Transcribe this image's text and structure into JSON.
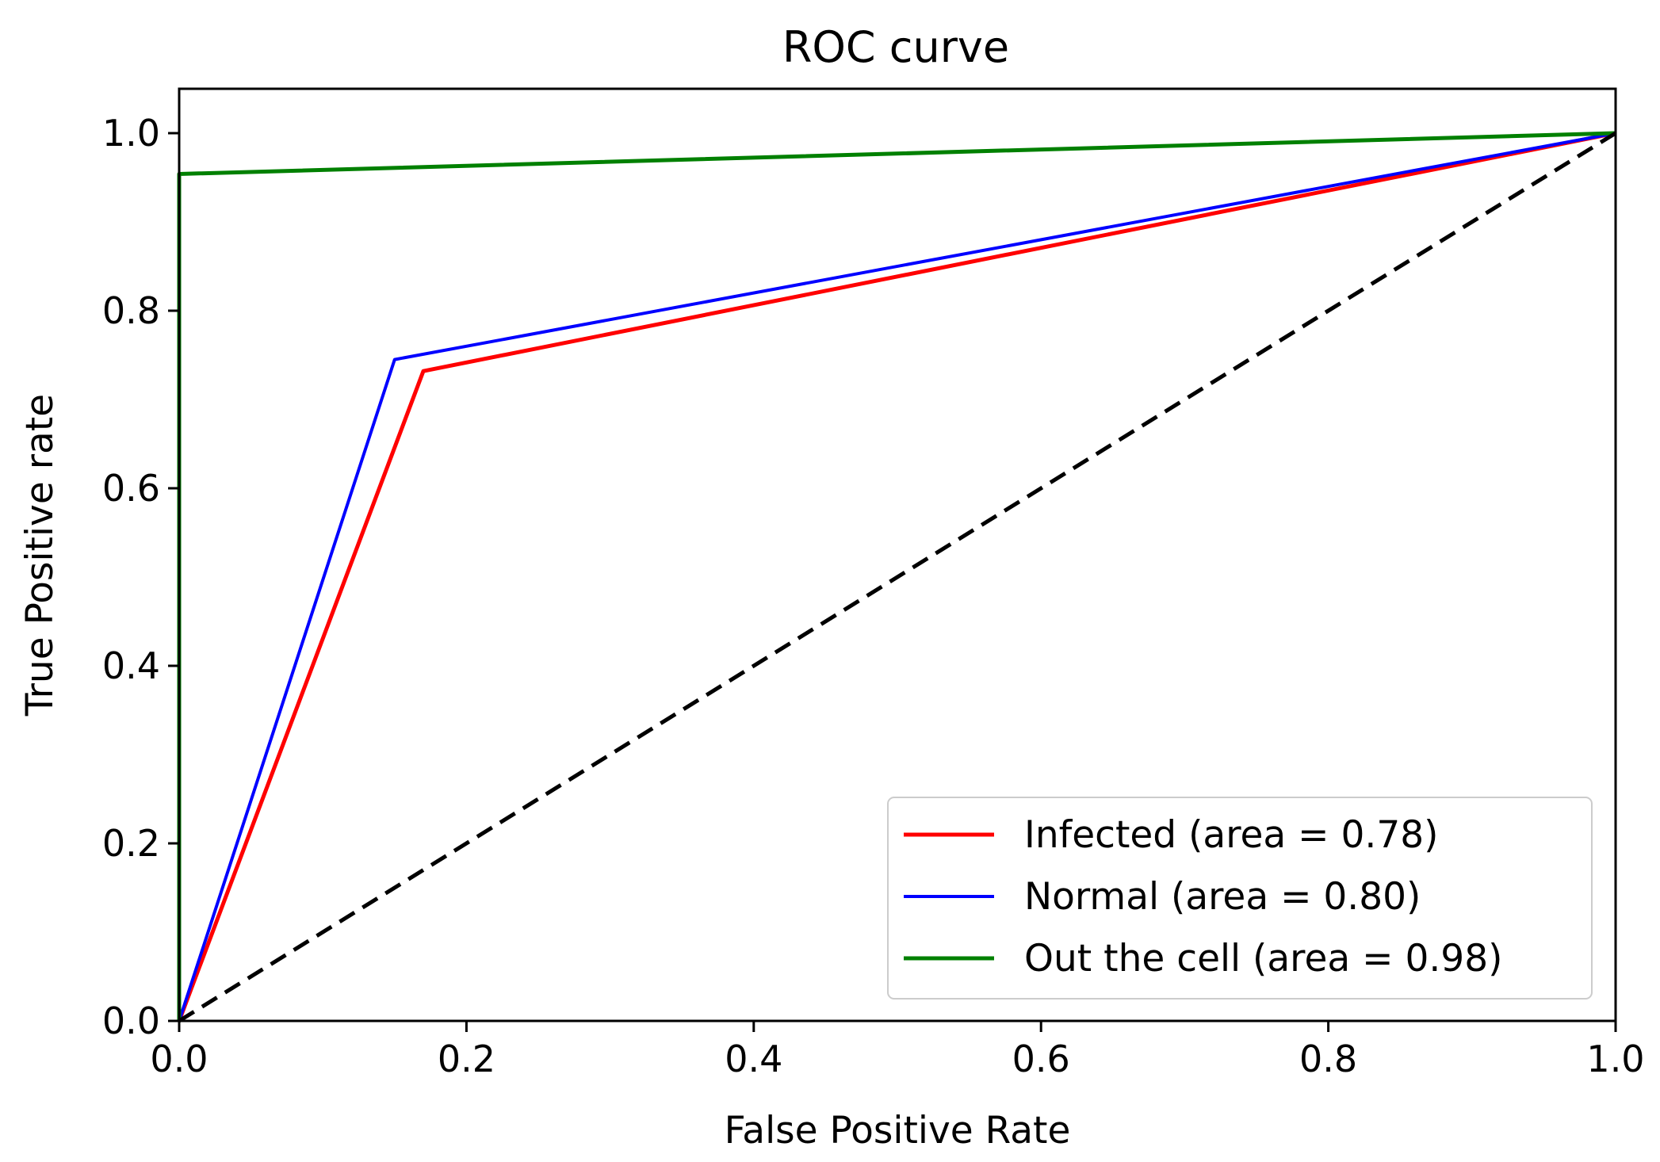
{
  "chart_data": {
    "type": "line",
    "title": "ROC curve",
    "xlabel": "False Positive Rate",
    "ylabel": "True Positive rate",
    "xlim": [
      0.0,
      1.0
    ],
    "ylim": [
      0.0,
      1.05
    ],
    "x_ticks": [
      "0.0",
      "0.2",
      "0.4",
      "0.6",
      "0.8",
      "1.0"
    ],
    "y_ticks": [
      "0.0",
      "0.2",
      "0.4",
      "0.6",
      "0.8",
      "1.0"
    ],
    "grid": false,
    "legend_position": "lower-right",
    "series": [
      {
        "name": "Infected (area = 0.78)",
        "color": "#ff0000",
        "style": "solid",
        "x": [
          0.0,
          0.17,
          1.0
        ],
        "y": [
          0.0,
          0.732,
          1.0
        ]
      },
      {
        "name": "Normal (area = 0.80)",
        "color": "#0000ff",
        "style": "solid",
        "x": [
          0.0,
          0.15,
          1.0
        ],
        "y": [
          0.0,
          0.745,
          1.0
        ]
      },
      {
        "name": "Out the cell (area = 0.98)",
        "color": "#008000",
        "style": "solid",
        "x": [
          0.0,
          0.0,
          1.0
        ],
        "y": [
          0.0,
          0.954,
          1.0
        ]
      }
    ],
    "reference_line": {
      "color": "#000000",
      "style": "dashed",
      "x": [
        0.0,
        1.0
      ],
      "y": [
        0.0,
        1.0
      ]
    }
  }
}
